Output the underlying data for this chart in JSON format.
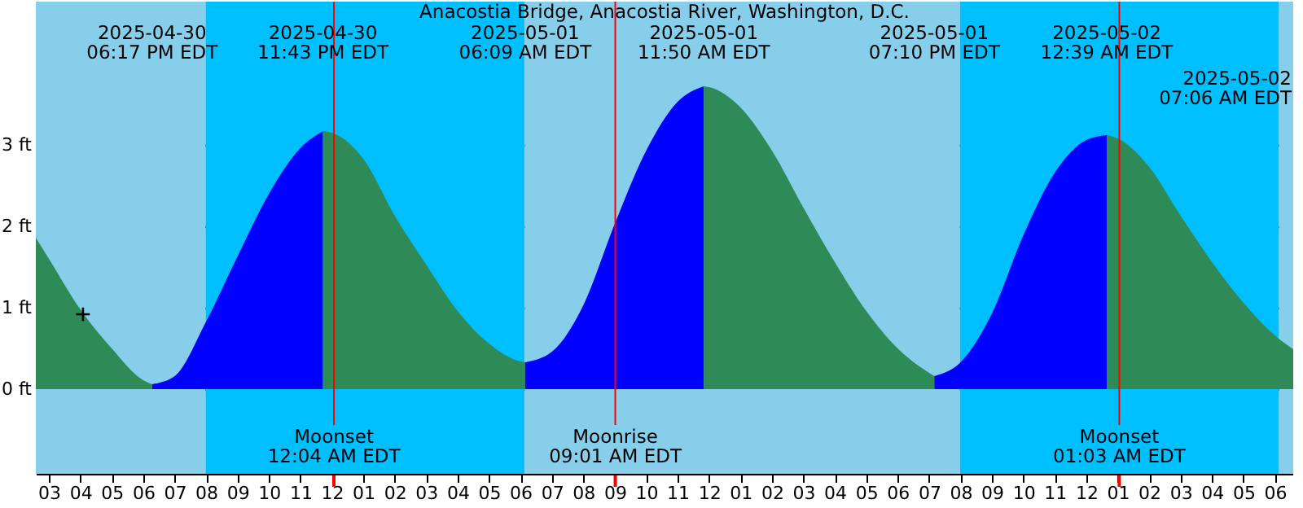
{
  "chart_data": {
    "type": "area",
    "title": "Anacostia Bridge, Anacostia River, Washington, D.C.",
    "xlim": [
      "2025-04-30T14:35",
      "2025-05-02T06:35"
    ],
    "xticks": [
      {
        "value": "2025-04-30T15:00",
        "label": "03"
      },
      {
        "value": "2025-04-30T16:00",
        "label": "04"
      },
      {
        "value": "2025-04-30T17:00",
        "label": "05"
      },
      {
        "value": "2025-04-30T18:00",
        "label": "06"
      },
      {
        "value": "2025-04-30T19:00",
        "label": "07"
      },
      {
        "value": "2025-04-30T20:00",
        "label": "08"
      },
      {
        "value": "2025-04-30T21:00",
        "label": "09"
      },
      {
        "value": "2025-04-30T22:00",
        "label": "10"
      },
      {
        "value": "2025-04-30T23:00",
        "label": "11"
      },
      {
        "value": "2025-05-01T00:00",
        "label": "12"
      },
      {
        "value": "2025-05-01T01:00",
        "label": "01"
      },
      {
        "value": "2025-05-01T02:00",
        "label": "02"
      },
      {
        "value": "2025-05-01T03:00",
        "label": "03"
      },
      {
        "value": "2025-05-01T04:00",
        "label": "04"
      },
      {
        "value": "2025-05-01T05:00",
        "label": "05"
      },
      {
        "value": "2025-05-01T06:00",
        "label": "06"
      },
      {
        "value": "2025-05-01T07:00",
        "label": "07"
      },
      {
        "value": "2025-05-01T08:00",
        "label": "08"
      },
      {
        "value": "2025-05-01T09:00",
        "label": "09"
      },
      {
        "value": "2025-05-01T10:00",
        "label": "10"
      },
      {
        "value": "2025-05-01T11:00",
        "label": "11"
      },
      {
        "value": "2025-05-01T12:00",
        "label": "12"
      },
      {
        "value": "2025-05-01T13:00",
        "label": "01"
      },
      {
        "value": "2025-05-01T14:00",
        "label": "02"
      },
      {
        "value": "2025-05-01T15:00",
        "label": "03"
      },
      {
        "value": "2025-05-01T16:00",
        "label": "04"
      },
      {
        "value": "2025-05-01T17:00",
        "label": "05"
      },
      {
        "value": "2025-05-01T18:00",
        "label": "06"
      },
      {
        "value": "2025-05-01T19:00",
        "label": "07"
      },
      {
        "value": "2025-05-01T20:00",
        "label": "08"
      },
      {
        "value": "2025-05-01T21:00",
        "label": "09"
      },
      {
        "value": "2025-05-01T22:00",
        "label": "10"
      },
      {
        "value": "2025-05-01T23:00",
        "label": "11"
      },
      {
        "value": "2025-05-02T00:00",
        "label": "12"
      },
      {
        "value": "2025-05-02T01:00",
        "label": "01"
      },
      {
        "value": "2025-05-02T02:00",
        "label": "02"
      },
      {
        "value": "2025-05-02T03:00",
        "label": "03"
      },
      {
        "value": "2025-05-02T04:00",
        "label": "04"
      },
      {
        "value": "2025-05-02T05:00",
        "label": "05"
      },
      {
        "value": "2025-05-02T06:00",
        "label": "06"
      }
    ],
    "ylim": [
      -1.04,
      4.76
    ],
    "yticks": [
      {
        "value": 0,
        "label": "0 ft"
      },
      {
        "value": 1,
        "label": "1 ft"
      },
      {
        "value": 2,
        "label": "2 ft"
      },
      {
        "value": 3,
        "label": "3 ft"
      }
    ],
    "grid": "y",
    "bands": [
      {
        "axis": "x",
        "from": "2025-04-30T14:35",
        "to": "2025-04-30T19:59",
        "color": "#87ceeb"
      },
      {
        "axis": "x",
        "from": "2025-04-30T19:59",
        "to": "2025-05-01T06:08",
        "color": "#00bfff"
      },
      {
        "axis": "x",
        "from": "2025-05-01T06:08",
        "to": "2025-05-01T19:59",
        "color": "#87ceeb"
      },
      {
        "axis": "x",
        "from": "2025-05-01T19:59",
        "to": "2025-05-02T06:08",
        "color": "#00bfff"
      },
      {
        "axis": "x",
        "from": "2025-05-02T06:08",
        "to": "2025-05-02T06:35",
        "color": "#87ceeb"
      }
    ],
    "series": [
      {
        "color": "#2e8b57",
        "x": [
          "2025-04-30T14:35",
          "2025-04-30T15:00",
          "2025-04-30T16:00",
          "2025-04-30T17:00",
          "2025-04-30T18:00",
          "2025-04-30T18:17"
        ],
        "values": [
          1.86,
          1.6,
          0.98,
          0.5,
          0.11,
          0.06
        ]
      },
      {
        "color": "#0000ff",
        "x": [
          "2025-04-30T18:17",
          "2025-04-30T19:00",
          "2025-04-30T20:00",
          "2025-04-30T21:00",
          "2025-04-30T22:00",
          "2025-04-30T23:00",
          "2025-04-30T23:43"
        ],
        "values": [
          0.06,
          0.16,
          0.83,
          1.63,
          2.4,
          2.96,
          3.17
        ]
      },
      {
        "color": "#2e8b57",
        "x": [
          "2025-04-30T23:43",
          "2025-05-01T00:00",
          "2025-05-01T01:00",
          "2025-05-01T02:00",
          "2025-05-01T03:00",
          "2025-05-01T04:00",
          "2025-05-01T05:00",
          "2025-05-01T06:00",
          "2025-05-01T06:09"
        ],
        "values": [
          3.17,
          3.15,
          2.83,
          2.13,
          1.53,
          0.96,
          0.56,
          0.34,
          0.33
        ]
      },
      {
        "color": "#0000ff",
        "x": [
          "2025-05-01T06:09",
          "2025-05-01T07:00",
          "2025-05-01T08:00",
          "2025-05-01T09:00",
          "2025-05-01T10:00",
          "2025-05-01T11:00",
          "2025-05-01T11:50"
        ],
        "values": [
          0.33,
          0.46,
          1.03,
          2.03,
          2.93,
          3.53,
          3.72
        ]
      },
      {
        "color": "#2e8b57",
        "x": [
          "2025-05-01T11:50",
          "2025-05-01T12:00",
          "2025-05-01T13:00",
          "2025-05-01T14:00",
          "2025-05-01T15:00",
          "2025-05-01T16:00",
          "2025-05-01T17:00",
          "2025-05-01T18:00",
          "2025-05-01T19:00",
          "2025-05-01T19:10"
        ],
        "values": [
          3.72,
          3.71,
          3.46,
          2.93,
          2.23,
          1.56,
          0.96,
          0.5,
          0.2,
          0.16
        ]
      },
      {
        "color": "#0000ff",
        "x": [
          "2025-05-01T19:10",
          "2025-05-01T20:00",
          "2025-05-01T21:00",
          "2025-05-01T22:00",
          "2025-05-01T23:00",
          "2025-05-02T00:00",
          "2025-05-02T00:39"
        ],
        "values": [
          0.16,
          0.33,
          0.93,
          1.89,
          2.66,
          3.06,
          3.12
        ]
      },
      {
        "color": "#2e8b57",
        "x": [
          "2025-05-02T00:39",
          "2025-05-02T01:00",
          "2025-05-02T02:00",
          "2025-05-02T03:00",
          "2025-05-02T04:00",
          "2025-05-02T05:00",
          "2025-05-02T06:00",
          "2025-05-02T06:35"
        ],
        "values": [
          3.12,
          3.08,
          2.73,
          2.13,
          1.56,
          1.06,
          0.66,
          0.49
        ]
      },
      {
        "type": "scatter",
        "marker": "cross",
        "color": "#000000",
        "x": [
          "2025-04-30T16:05"
        ],
        "values": [
          0.92
        ]
      }
    ],
    "ref_lines": [
      {
        "axis": "x",
        "value": "2025-05-01T00:04",
        "label": "Moonset\n12:04 AM EDT",
        "color": "#ff0000"
      },
      {
        "axis": "x",
        "value": "2025-05-01T09:01",
        "label": "Moonrise\n09:01 AM EDT",
        "color": "#ff0000"
      },
      {
        "axis": "x",
        "value": "2025-05-02T01:03",
        "label": "Moonset\n01:03 AM EDT",
        "color": "#ff0000"
      }
    ],
    "annotations": [
      "2025-04-30\n06:17 PM EDT",
      "2025-04-30\n11:43 PM EDT",
      "2025-05-01\n06:09 AM EDT",
      "2025-05-01\n11:50 AM EDT",
      "2025-05-01\n07:10 PM EDT",
      "2025-05-02\n12:39 AM EDT",
      "2025-05-02\n07:06 AM EDT"
    ]
  }
}
